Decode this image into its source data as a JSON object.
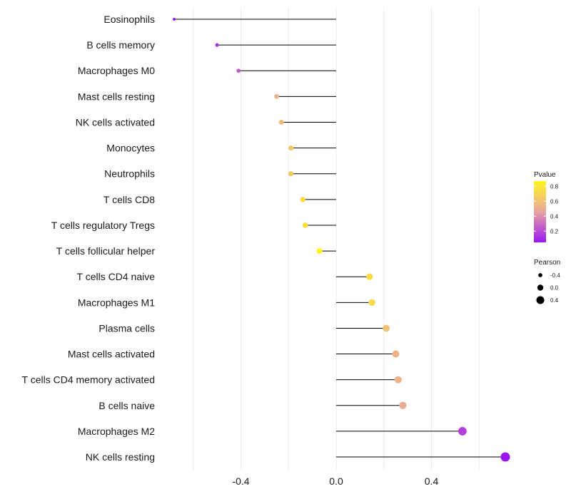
{
  "chart_data": {
    "type": "lollipop",
    "title": "",
    "xlabel": "",
    "ylabel": "",
    "xlim": [
      -0.68,
      0.86
    ],
    "x_ticks": [
      -0.4,
      0.0,
      0.4
    ],
    "x_tick_labels": [
      "-0.4",
      "0.0",
      "0.4"
    ],
    "grid": true,
    "baseline": 0.0,
    "points": [
      {
        "category": "Eosinophils",
        "pearson": -0.68,
        "pvalue": 0.02
      },
      {
        "category": "B cells memory",
        "pearson": -0.5,
        "pvalue": 0.13
      },
      {
        "category": "Macrophages M0",
        "pearson": -0.41,
        "pvalue": 0.24
      },
      {
        "category": "Mast cells resting",
        "pearson": -0.25,
        "pvalue": 0.53
      },
      {
        "category": "NK cells activated",
        "pearson": -0.23,
        "pvalue": 0.57
      },
      {
        "category": "Monocytes",
        "pearson": -0.19,
        "pvalue": 0.64
      },
      {
        "category": "Neutrophils",
        "pearson": -0.19,
        "pvalue": 0.65
      },
      {
        "category": "T cells CD8",
        "pearson": -0.14,
        "pvalue": 0.74
      },
      {
        "category": "T cells regulatory  Tregs",
        "pearson": -0.13,
        "pvalue": 0.76
      },
      {
        "category": "T cells follicular helper",
        "pearson": -0.07,
        "pvalue": 0.87
      },
      {
        "category": "T cells CD4 naive",
        "pearson": 0.14,
        "pvalue": 0.74
      },
      {
        "category": "Macrophages M1",
        "pearson": 0.15,
        "pvalue": 0.73
      },
      {
        "category": "Plasma cells",
        "pearson": 0.21,
        "pvalue": 0.6
      },
      {
        "category": "Mast cells activated",
        "pearson": 0.25,
        "pvalue": 0.54
      },
      {
        "category": "T cells CD4 memory activated",
        "pearson": 0.26,
        "pvalue": 0.52
      },
      {
        "category": "B cells naive",
        "pearson": 0.28,
        "pvalue": 0.49
      },
      {
        "category": "Macrophages M2",
        "pearson": 0.53,
        "pvalue": 0.17
      },
      {
        "category": "NK cells resting",
        "pearson": 0.71,
        "pvalue": 0.05
      }
    ],
    "color_legend": {
      "title": "Pvalue",
      "range": [
        0.05,
        0.87
      ],
      "ticks": [
        0.2,
        0.4,
        0.6,
        0.8
      ],
      "tick_labels": [
        "0.2",
        "0.4",
        "0.6",
        "0.8"
      ],
      "colors": [
        "#9a16f0",
        "#e8a6a0",
        "#fff51e"
      ]
    },
    "size_legend": {
      "title": "Pearson",
      "values": [
        -0.4,
        0.0,
        0.4
      ],
      "labels": [
        "-0.4",
        "0.0",
        "0.4"
      ],
      "color": "#000000"
    }
  }
}
